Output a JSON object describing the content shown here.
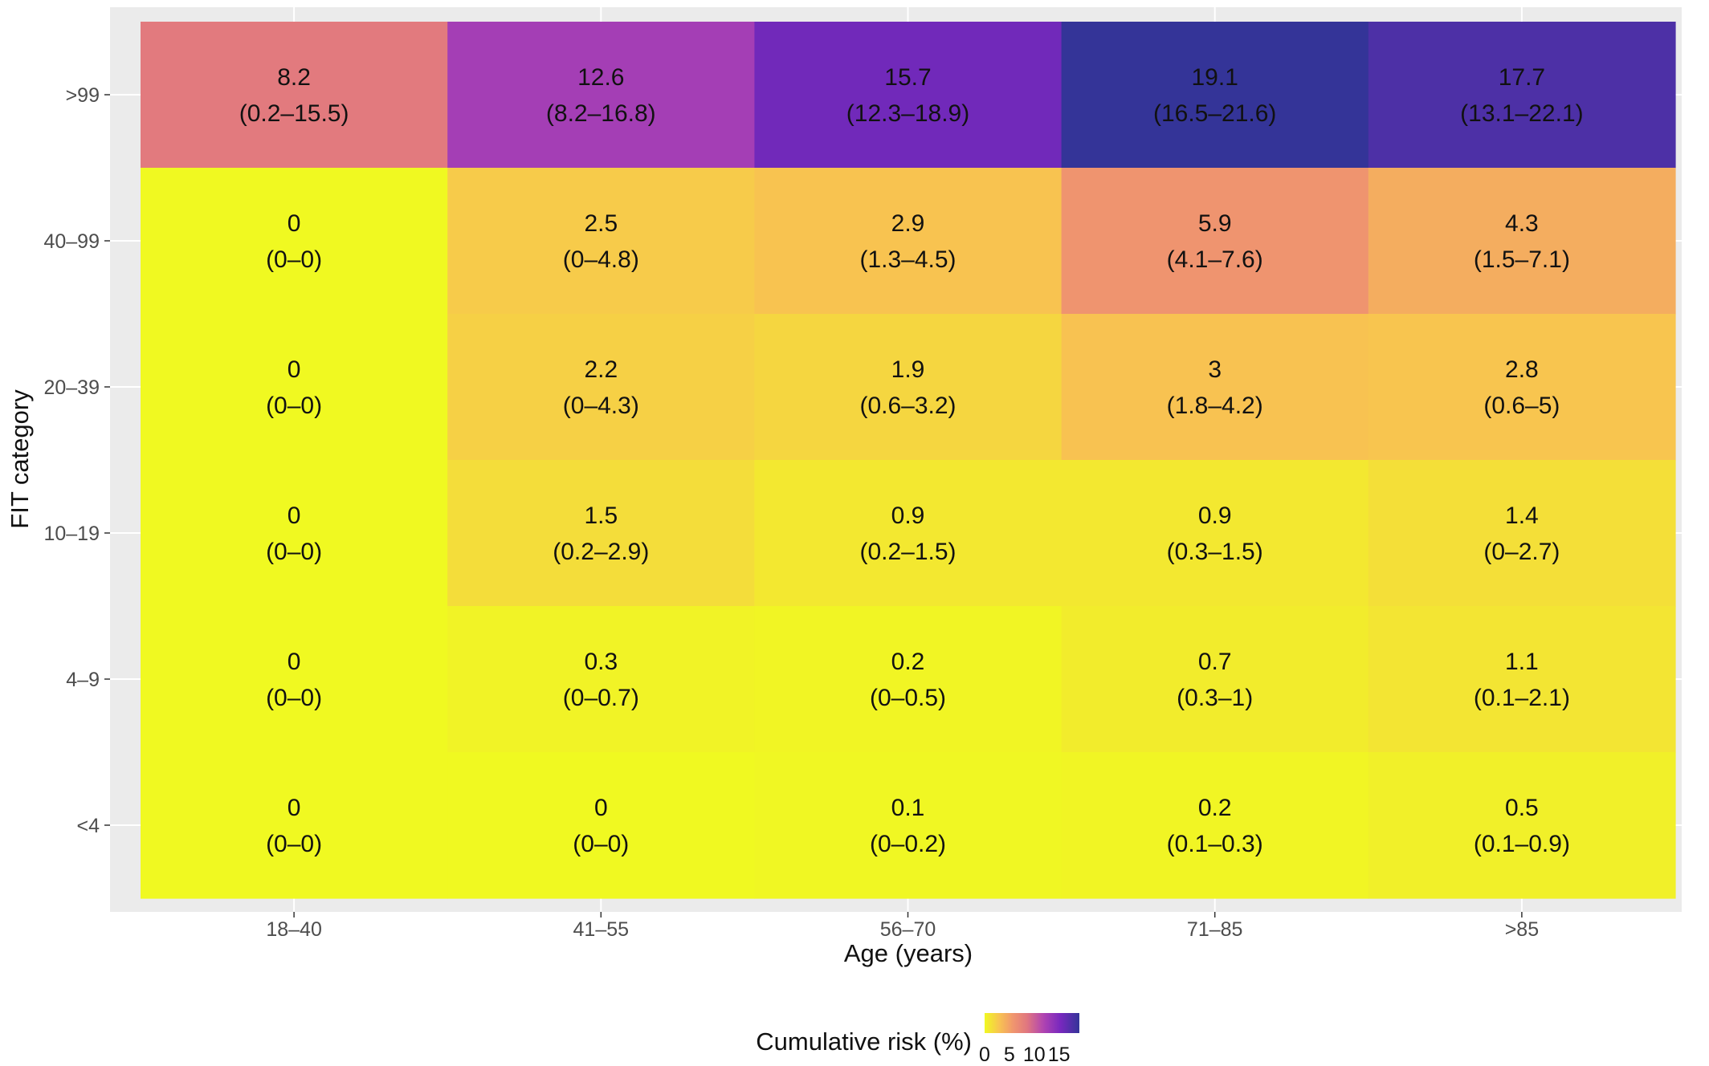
{
  "chart_data": {
    "type": "heatmap",
    "xlabel": "Age (years)",
    "ylabel": "FIT category",
    "x_categories": [
      "18–40",
      "41–55",
      "56–70",
      "71–85",
      ">85"
    ],
    "y_categories": [
      ">99",
      "40–99",
      "20–39",
      "10–19",
      "4–9",
      "<4"
    ],
    "values": [
      [
        8.2,
        12.6,
        15.7,
        19.1,
        17.7
      ],
      [
        0,
        2.5,
        2.9,
        5.9,
        4.3
      ],
      [
        0,
        2.2,
        1.9,
        3,
        2.8
      ],
      [
        0,
        1.5,
        0.9,
        0.9,
        1.4
      ],
      [
        0,
        0.3,
        0.2,
        0.7,
        1.1
      ],
      [
        0,
        0,
        0.1,
        0.2,
        0.5
      ]
    ],
    "value_labels": [
      [
        "8.2",
        "12.6",
        "15.7",
        "19.1",
        "17.7"
      ],
      [
        "0",
        "2.5",
        "2.9",
        "5.9",
        "4.3"
      ],
      [
        "0",
        "2.2",
        "1.9",
        "3",
        "2.8"
      ],
      [
        "0",
        "1.5",
        "0.9",
        "0.9",
        "1.4"
      ],
      [
        "0",
        "0.3",
        "0.2",
        "0.7",
        "1.1"
      ],
      [
        "0",
        "0",
        "0.1",
        "0.2",
        "0.5"
      ]
    ],
    "ci_labels": [
      [
        "(0.2–15.5)",
        "(8.2–16.8)",
        "(12.3–18.9)",
        "(16.5–21.6)",
        "(13.1–22.1)"
      ],
      [
        "(0–0)",
        "(0–4.8)",
        "(1.3–4.5)",
        "(4.1–7.6)",
        "(1.5–7.1)"
      ],
      [
        "(0–0)",
        "(0–4.3)",
        "(0.6–3.2)",
        "(1.8–4.2)",
        "(0.6–5)"
      ],
      [
        "(0–0)",
        "(0.2–2.9)",
        "(0.2–1.5)",
        "(0.3–1.5)",
        "(0–2.7)"
      ],
      [
        "(0–0)",
        "(0–0.7)",
        "(0–0.5)",
        "(0.3–1)",
        "(0.1–2.1)"
      ],
      [
        "(0–0)",
        "(0–0)",
        "(0–0.2)",
        "(0.1–0.3)",
        "(0.1–0.9)"
      ]
    ],
    "legend": {
      "title": "Cumulative risk (%)",
      "placement": "bottom",
      "ticks": [
        "0",
        "5",
        "10",
        "15"
      ],
      "tick_values": [
        0,
        5,
        10,
        15
      ],
      "range": [
        0,
        19.1
      ]
    },
    "colors": {
      "panel_background": "#ebebeb",
      "gridline": "#ffffff",
      "scale_low": "#f0f921",
      "scale_high": "#0d0887"
    }
  }
}
